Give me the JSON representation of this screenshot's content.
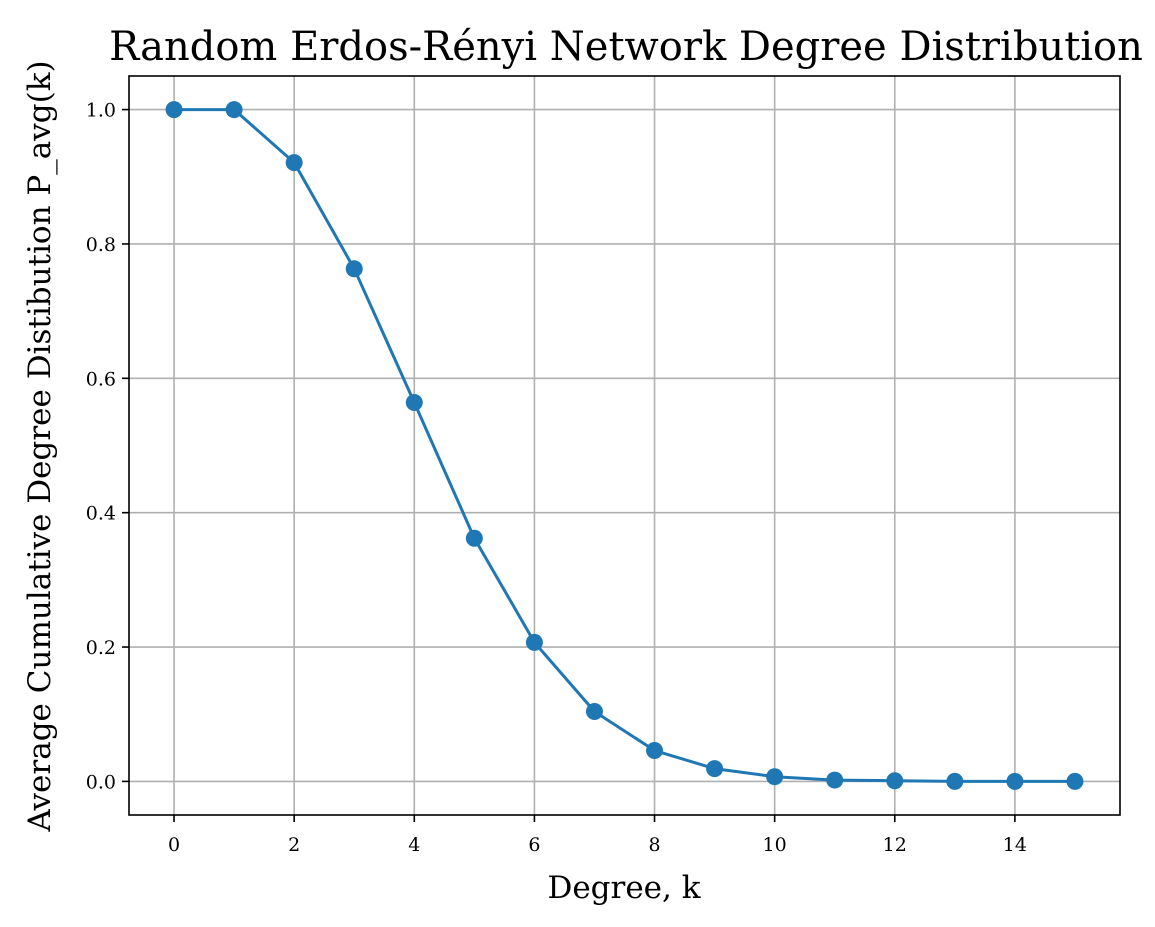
{
  "chart_data": {
    "type": "line",
    "title": "Random Erdos-Rényi Network Degree Distribution",
    "xlabel": "Degree, k",
    "ylabel": "Average Cumulative Degree Distibution P_avg(k)",
    "x": [
      0,
      1,
      2,
      3,
      4,
      5,
      6,
      7,
      8,
      9,
      10,
      11,
      12,
      13,
      14,
      15
    ],
    "series": [
      {
        "values": [
          1.0,
          1.0,
          0.921,
          0.763,
          0.564,
          0.362,
          0.207,
          0.104,
          0.046,
          0.019,
          0.007,
          0.002,
          0.001,
          0.0,
          0.0,
          0.0
        ],
        "color": "#1f77b4",
        "marker": "circle"
      }
    ],
    "xlim": [
      -0.75,
      15.75
    ],
    "ylim": [
      -0.05,
      1.05
    ],
    "xticks": [
      0,
      2,
      4,
      6,
      8,
      10,
      12,
      14
    ],
    "xtick_labels": [
      "0",
      "2",
      "4",
      "6",
      "8",
      "10",
      "12",
      "14"
    ],
    "yticks": [
      0.0,
      0.2,
      0.4,
      0.6,
      0.8,
      1.0
    ],
    "ytick_labels": [
      "0.0",
      "0.2",
      "0.4",
      "0.6",
      "0.8",
      "1.0"
    ],
    "grid": true,
    "legend": "none"
  }
}
